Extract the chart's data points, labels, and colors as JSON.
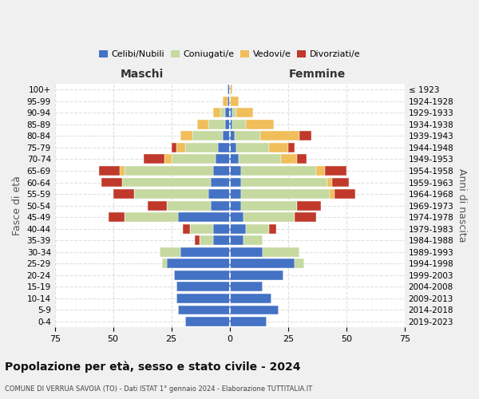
{
  "age_groups": [
    "100+",
    "95-99",
    "90-94",
    "85-89",
    "80-84",
    "75-79",
    "70-74",
    "65-69",
    "60-64",
    "55-59",
    "50-54",
    "45-49",
    "40-44",
    "35-39",
    "30-34",
    "25-29",
    "20-24",
    "15-19",
    "10-14",
    "5-9",
    "0-4"
  ],
  "birth_years": [
    "≤ 1923",
    "1924-1928",
    "1929-1933",
    "1934-1938",
    "1939-1943",
    "1944-1948",
    "1949-1953",
    "1954-1958",
    "1959-1963",
    "1964-1968",
    "1969-1973",
    "1974-1978",
    "1979-1983",
    "1984-1988",
    "1989-1993",
    "1994-1998",
    "1999-2003",
    "2004-2008",
    "2009-2013",
    "2014-2018",
    "2019-2023"
  ],
  "colors": {
    "celibi": "#4472c4",
    "coniugati": "#c5d9a0",
    "vedovi": "#f0be5a",
    "divorziati": "#c0392b"
  },
  "males": {
    "celibi": [
      1,
      1,
      2,
      2,
      3,
      5,
      6,
      7,
      8,
      9,
      8,
      22,
      7,
      7,
      21,
      27,
      24,
      23,
      23,
      22,
      19
    ],
    "coniugati": [
      0,
      0,
      2,
      7,
      13,
      14,
      19,
      38,
      38,
      32,
      19,
      23,
      10,
      6,
      9,
      2,
      0,
      0,
      0,
      0,
      0
    ],
    "vedovi": [
      0,
      2,
      3,
      5,
      5,
      4,
      3,
      2,
      0,
      0,
      0,
      0,
      0,
      0,
      0,
      0,
      0,
      0,
      0,
      0,
      0
    ],
    "divorziati": [
      0,
      0,
      0,
      0,
      0,
      2,
      9,
      9,
      9,
      9,
      8,
      7,
      3,
      2,
      0,
      0,
      0,
      0,
      0,
      0,
      0
    ]
  },
  "females": {
    "celibi": [
      0,
      0,
      1,
      1,
      2,
      3,
      4,
      5,
      5,
      5,
      5,
      6,
      7,
      6,
      14,
      28,
      23,
      14,
      18,
      21,
      16
    ],
    "coniugati": [
      0,
      0,
      2,
      6,
      11,
      14,
      18,
      32,
      37,
      38,
      24,
      22,
      10,
      8,
      16,
      4,
      0,
      0,
      0,
      0,
      0
    ],
    "vedovi": [
      1,
      4,
      7,
      12,
      17,
      8,
      7,
      4,
      2,
      2,
      0,
      0,
      0,
      0,
      0,
      0,
      0,
      0,
      0,
      0,
      0
    ],
    "divorziati": [
      0,
      0,
      0,
      0,
      5,
      3,
      4,
      9,
      7,
      9,
      10,
      9,
      3,
      0,
      0,
      0,
      0,
      0,
      0,
      0,
      0
    ]
  },
  "title": "Popolazione per età, sesso e stato civile - 2024",
  "subtitle": "COMUNE DI VERRUA SAVOIA (TO) - Dati ISTAT 1° gennaio 2024 - Elaborazione TUTTITALIA.IT",
  "xlabel_left": "Maschi",
  "xlabel_right": "Femmine",
  "ylabel_left": "Fasce di età",
  "ylabel_right": "Anni di nascita",
  "xlim": 75,
  "background_color": "#f0f0f0",
  "plot_background": "#ffffff"
}
